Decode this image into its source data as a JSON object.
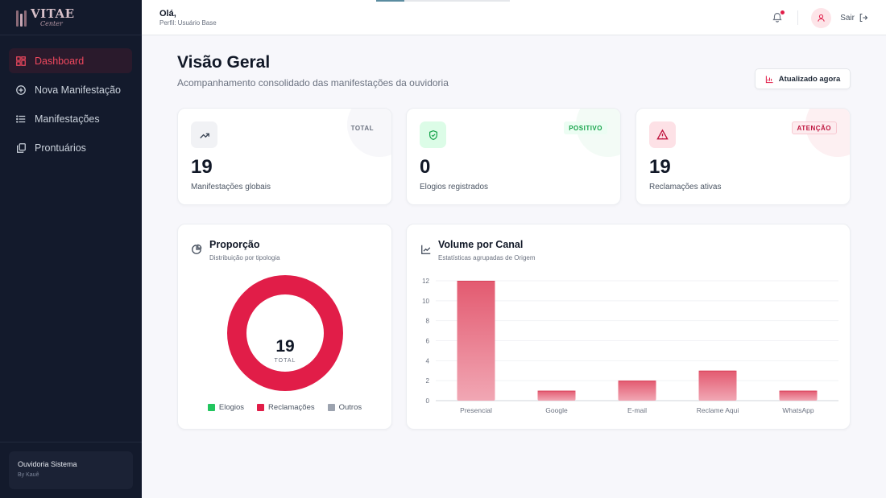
{
  "sidebar": {
    "brand_main": "VITAE",
    "brand_sub": "Center",
    "items": [
      {
        "label": "Dashboard",
        "icon": "dashboard-icon",
        "active": true
      },
      {
        "label": "Nova Manifestação",
        "icon": "plus-circle-icon",
        "active": false
      },
      {
        "label": "Manifestações",
        "icon": "list-icon",
        "active": false
      },
      {
        "label": "Prontuários",
        "icon": "copy-icon",
        "active": false
      }
    ],
    "footer_title": "Ouvidoria Sistema",
    "footer_sub": "By Kauê"
  },
  "topbar": {
    "greeting": "Olá,",
    "profile": "Perfil: Usuário Base",
    "logout_label": "Sair",
    "loading_progress": 0.21
  },
  "page": {
    "title": "Visão Geral",
    "subtitle": "Acompanhamento consolidado das manifestações da ouvidoria",
    "refresh_label": "Atualizado agora"
  },
  "stats": [
    {
      "badge": "TOTAL",
      "value": "19",
      "label": "Manifestações globais",
      "icon": "trending-up-icon"
    },
    {
      "badge": "POSITIVO",
      "value": "0",
      "label": "Elogios registrados",
      "icon": "shield-check-icon"
    },
    {
      "badge": "ATENÇÃO",
      "value": "19",
      "label": "Reclamações ativas",
      "icon": "alert-triangle-icon"
    }
  ],
  "proportion": {
    "title": "Proporção",
    "subtitle": "Distribuição por tipologia",
    "center_value": "19",
    "center_label": "TOTAL",
    "legend": [
      {
        "label": "Elogios",
        "color": "#22c55e"
      },
      {
        "label": "Reclamações",
        "color": "#e11d48"
      },
      {
        "label": "Outros",
        "color": "#9ca3af"
      }
    ]
  },
  "volume": {
    "title": "Volume por Canal",
    "subtitle": "Estatísticas agrupadas de Origem"
  },
  "chart_data": [
    {
      "type": "pie",
      "categories": [
        "Elogios",
        "Reclamações",
        "Outros"
      ],
      "values": [
        0,
        19,
        0
      ],
      "colors": [
        "#22c55e",
        "#e11d48",
        "#9ca3af"
      ]
    },
    {
      "type": "bar",
      "categories": [
        "Presencial",
        "Google",
        "E-mail",
        "Reclame Aqui",
        "WhatsApp"
      ],
      "values": [
        12,
        1,
        2,
        3,
        1
      ],
      "yticks": [
        0,
        2,
        4,
        6,
        8,
        10,
        12
      ],
      "ylim": [
        0,
        12
      ],
      "grid": true,
      "colors": {
        "bar_top": "#e35a70",
        "bar_bottom": "#f1a7b4"
      }
    }
  ]
}
